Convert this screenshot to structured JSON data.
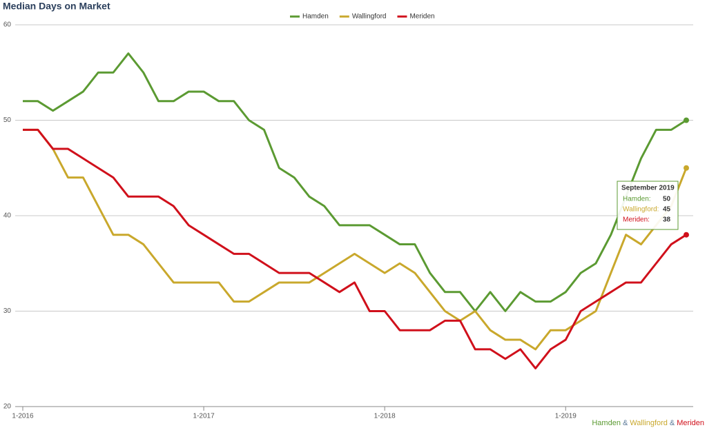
{
  "chart_data": {
    "type": "line",
    "title": "Median Days on Market",
    "categories": [
      "1-2016",
      null,
      null,
      null,
      null,
      null,
      null,
      null,
      null,
      null,
      null,
      null,
      "1-2017",
      null,
      null,
      null,
      null,
      null,
      null,
      null,
      null,
      null,
      null,
      null,
      "1-2018",
      null,
      null,
      null,
      null,
      null,
      null,
      null,
      null,
      null,
      null,
      null,
      "1-2019",
      null,
      null,
      null,
      null,
      null,
      null,
      null,
      null
    ],
    "series": [
      {
        "name": "Hamden",
        "color": "#5b9a32",
        "values": [
          52,
          52,
          51,
          52,
          53,
          55,
          55,
          57,
          55,
          52,
          52,
          53,
          53,
          52,
          52,
          50,
          49,
          45,
          44,
          42,
          41,
          39,
          39,
          39,
          38,
          37,
          37,
          34,
          32,
          32,
          30,
          32,
          30,
          32,
          31,
          31,
          32,
          34,
          35,
          38,
          42,
          46,
          49,
          49,
          50
        ]
      },
      {
        "name": "Wallingford",
        "color": "#c9a82c",
        "values": [
          49,
          49,
          47,
          44,
          44,
          41,
          38,
          38,
          37,
          35,
          33,
          33,
          33,
          33,
          31,
          31,
          32,
          33,
          33,
          33,
          34,
          35,
          36,
          35,
          34,
          35,
          34,
          32,
          30,
          29,
          30,
          28,
          27,
          27,
          26,
          28,
          28,
          29,
          30,
          34,
          38,
          37,
          39,
          41,
          45
        ]
      },
      {
        "name": "Meriden",
        "color": "#d0101b",
        "values": [
          49,
          49,
          47,
          47,
          46,
          45,
          44,
          42,
          42,
          42,
          41,
          39,
          38,
          37,
          36,
          36,
          35,
          34,
          34,
          34,
          33,
          32,
          33,
          30,
          30,
          28,
          28,
          28,
          29,
          29,
          26,
          26,
          25,
          26,
          24,
          26,
          27,
          30,
          31,
          32,
          33,
          33,
          35,
          37,
          38
        ]
      }
    ],
    "ylim": [
      20,
      60
    ],
    "yticks": [
      20,
      30,
      40,
      50,
      60
    ],
    "grid": true,
    "tooltip": {
      "title": "September 2019",
      "labels": [
        "Hamden:",
        "Wallingford:",
        "Meriden:"
      ]
    },
    "footer": [
      "Hamden",
      "&",
      "Wallingford",
      "&",
      "Meriden"
    ]
  }
}
